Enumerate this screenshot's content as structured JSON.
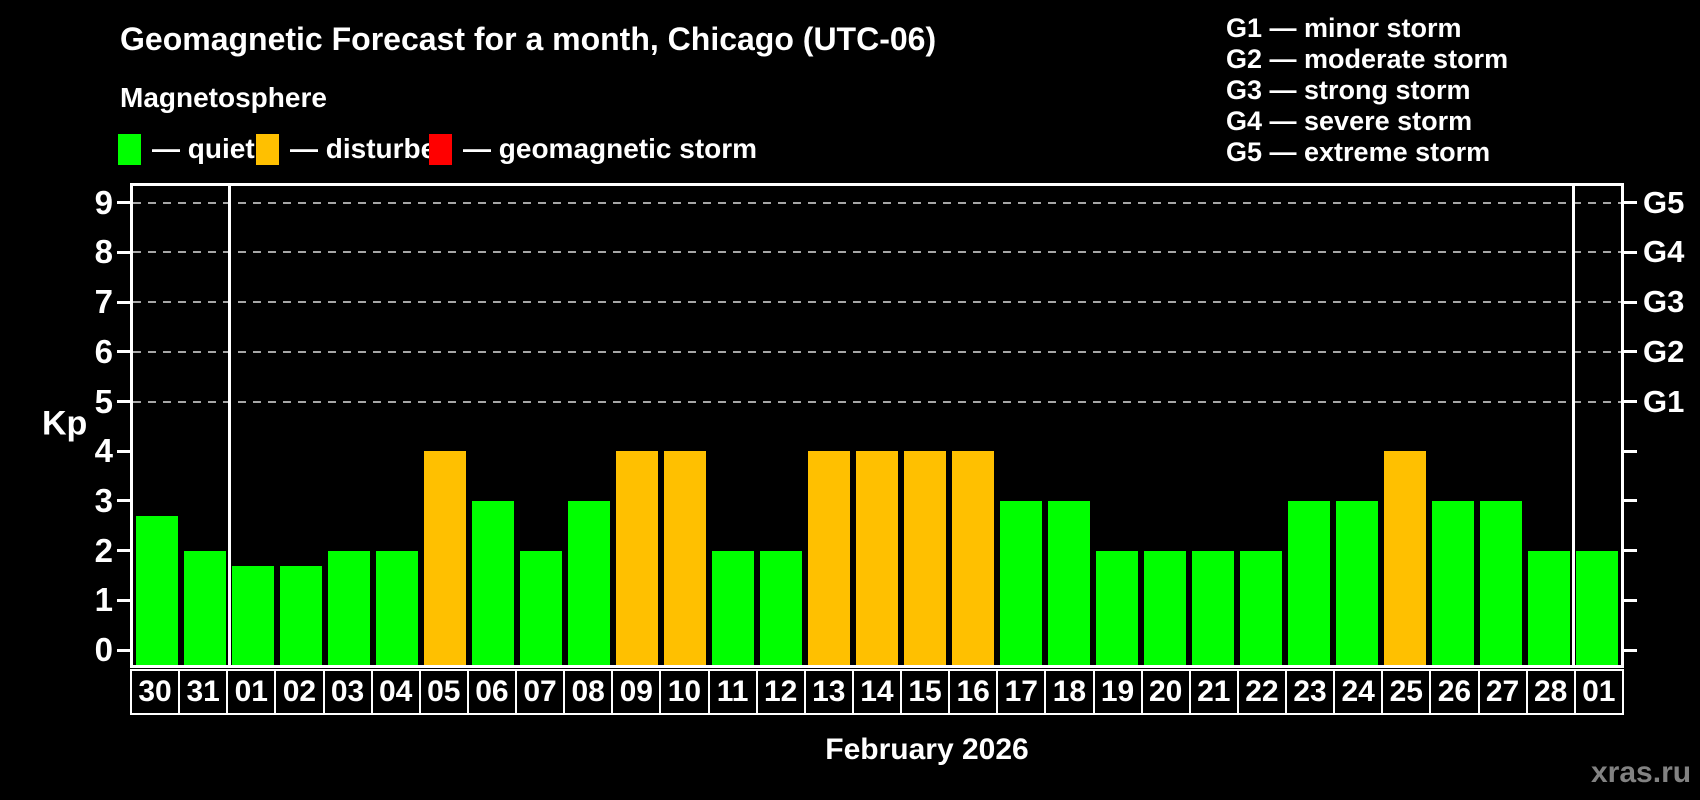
{
  "header": {
    "title": "Geomagnetic Forecast for a month, Chicago (UTC-06)",
    "subtitle": "Magnetosphere"
  },
  "legend": {
    "items": [
      {
        "label": "— quiet",
        "status": "quiet",
        "color": "#00ff00"
      },
      {
        "label": "— disturbed",
        "status": "disturbed",
        "color": "#ffc000"
      },
      {
        "label": "— geomagnetic storm",
        "status": "storm",
        "color": "#ff0000"
      }
    ]
  },
  "g_scale_legend": {
    "lines": [
      "G1 — minor storm",
      "G2 — moderate storm",
      "G3 — strong storm",
      "G4 — severe storm",
      "G5 — extreme storm"
    ]
  },
  "watermark": "xras.ru",
  "chart_data": {
    "type": "bar",
    "title": "Geomagnetic Forecast for a month, Chicago (UTC-06)",
    "subtitle": "Magnetosphere",
    "xlabel": "February 2026",
    "ylabel": "Kp",
    "ylim": [
      0,
      9
    ],
    "y_ticks": [
      0,
      1,
      2,
      3,
      4,
      5,
      6,
      7,
      8,
      9
    ],
    "gridlines_at_kp": [
      5,
      6,
      7,
      8,
      9
    ],
    "grid": "dashed-horizontal",
    "legend_position": "top-left",
    "right_axis_labels": [
      {
        "kp": 5,
        "label": "G1"
      },
      {
        "kp": 6,
        "label": "G2"
      },
      {
        "kp": 7,
        "label": "G3"
      },
      {
        "kp": 8,
        "label": "G4"
      },
      {
        "kp": 9,
        "label": "G5"
      }
    ],
    "categories": [
      "30",
      "31",
      "01",
      "02",
      "03",
      "04",
      "05",
      "06",
      "07",
      "08",
      "09",
      "10",
      "11",
      "12",
      "13",
      "14",
      "15",
      "16",
      "17",
      "18",
      "19",
      "20",
      "21",
      "22",
      "23",
      "24",
      "25",
      "26",
      "27",
      "28",
      "01"
    ],
    "values": [
      2.7,
      2,
      1.7,
      1.7,
      2,
      2,
      4,
      3,
      2,
      3,
      4,
      4,
      2,
      2,
      4,
      4,
      4,
      4,
      3,
      3,
      2,
      2,
      2,
      2,
      3,
      3,
      4,
      3,
      3,
      2,
      2
    ],
    "statuses": [
      "quiet",
      "quiet",
      "quiet",
      "quiet",
      "quiet",
      "quiet",
      "disturbed",
      "quiet",
      "quiet",
      "quiet",
      "disturbed",
      "disturbed",
      "quiet",
      "quiet",
      "disturbed",
      "disturbed",
      "disturbed",
      "disturbed",
      "quiet",
      "quiet",
      "quiet",
      "quiet",
      "quiet",
      "quiet",
      "quiet",
      "quiet",
      "disturbed",
      "quiet",
      "quiet",
      "quiet",
      "quiet"
    ],
    "colors": {
      "quiet": "#00ff00",
      "disturbed": "#ffc000",
      "storm": "#ff0000"
    },
    "month_boundaries_at_index": [
      2,
      30
    ]
  }
}
